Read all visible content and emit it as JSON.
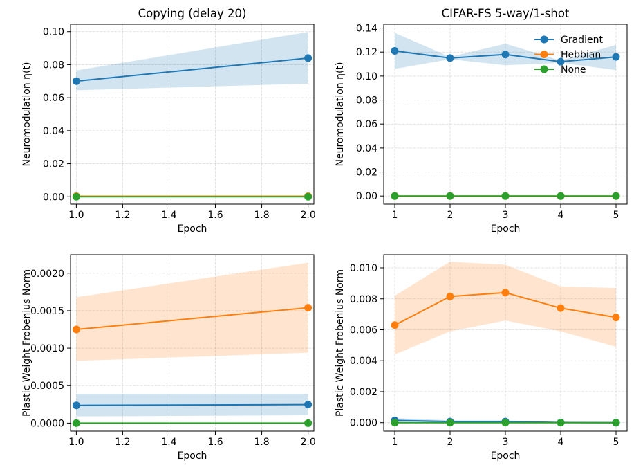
{
  "chart_data": [
    {
      "type": "line",
      "title": "Copying (delay 20)",
      "xlabel": "Epoch",
      "ylabel": "Neuromodulation η(t)",
      "xlim": [
        0.975,
        2.025
      ],
      "ylim": [
        -0.0045,
        0.1045
      ],
      "xticks": [
        1.0,
        1.2,
        1.4,
        1.6,
        1.8,
        2.0
      ],
      "xtick_labels": [
        "1.0",
        "1.2",
        "1.4",
        "1.6",
        "1.8",
        "2.0"
      ],
      "yticks": [
        0.0,
        0.02,
        0.04,
        0.06,
        0.08,
        0.1
      ],
      "ytick_labels": [
        "0.00",
        "0.02",
        "0.04",
        "0.06",
        "0.08",
        "0.10"
      ],
      "grid": true,
      "x": [
        1,
        2
      ],
      "series": [
        {
          "name": "Gradient",
          "color": "#1f77b4",
          "values": [
            0.07,
            0.084
          ],
          "lower": [
            0.0645,
            0.0685
          ],
          "upper": [
            0.0765,
            0.0998
          ]
        },
        {
          "name": "Hebbian",
          "color": "#ff7f0e",
          "values": [
            0.0003,
            0.0003
          ],
          "lower": [
            0.0001,
            0.0001
          ],
          "upper": [
            0.0005,
            0.0005
          ]
        },
        {
          "name": "None",
          "color": "#2ca02c",
          "values": [
            0.0,
            0.0
          ],
          "lower": [
            0.0,
            0.0
          ],
          "upper": [
            0.0,
            0.0
          ]
        }
      ]
    },
    {
      "type": "line",
      "title": "CIFAR-FS 5-way/1-shot",
      "xlabel": "Epoch",
      "ylabel": "Neuromodulation η(t)",
      "xlim": [
        0.8,
        5.2
      ],
      "ylim": [
        -0.0068,
        0.1432
      ],
      "xticks": [
        1,
        2,
        3,
        4,
        5
      ],
      "xtick_labels": [
        "1",
        "2",
        "3",
        "4",
        "5"
      ],
      "yticks": [
        0.0,
        0.02,
        0.04,
        0.06,
        0.08,
        0.1,
        0.12,
        0.14
      ],
      "ytick_labels": [
        "0.00",
        "0.02",
        "0.04",
        "0.06",
        "0.08",
        "0.10",
        "0.12",
        "0.14"
      ],
      "grid": true,
      "legend": "top-right",
      "x": [
        1,
        2,
        3,
        4,
        5
      ],
      "series": [
        {
          "name": "Gradient",
          "color": "#1f77b4",
          "values": [
            0.121,
            0.115,
            0.118,
            0.112,
            0.116
          ],
          "lower": [
            0.106,
            0.114,
            0.109,
            0.111,
            0.105
          ],
          "upper": [
            0.136,
            0.116,
            0.127,
            0.113,
            0.126
          ]
        },
        {
          "name": "Hebbian",
          "color": "#ff7f0e",
          "values": [
            0.0,
            0.0,
            0.0,
            0.0,
            0.0
          ],
          "lower": [
            0.0,
            0.0,
            0.0,
            0.0,
            0.0
          ],
          "upper": [
            0.0,
            0.0,
            0.0,
            0.0,
            0.0
          ]
        },
        {
          "name": "None",
          "color": "#2ca02c",
          "values": [
            0.0,
            0.0,
            0.0,
            0.0,
            0.0
          ],
          "lower": [
            0.0,
            0.0,
            0.0,
            0.0,
            0.0
          ],
          "upper": [
            0.0,
            0.0,
            0.0,
            0.0,
            0.0
          ]
        }
      ]
    },
    {
      "type": "line",
      "title": "",
      "xlabel": "Epoch",
      "ylabel": "Plastic Weight Frobenius Norm",
      "xlim": [
        0.975,
        2.025
      ],
      "ylim": [
        -0.000107,
        0.002247
      ],
      "xticks": [
        1.0,
        1.2,
        1.4,
        1.6,
        1.8,
        2.0
      ],
      "xtick_labels": [
        "1.0",
        "1.2",
        "1.4",
        "1.6",
        "1.8",
        "2.0"
      ],
      "yticks": [
        0.0,
        0.0005,
        0.001,
        0.0015,
        0.002
      ],
      "ytick_labels": [
        "0.0000",
        "0.0005",
        "0.0010",
        "0.0015",
        "0.0020"
      ],
      "grid": true,
      "x": [
        1,
        2
      ],
      "series": [
        {
          "name": "Gradient",
          "color": "#1f77b4",
          "values": [
            0.000237,
            0.000247
          ],
          "lower": [
            9e-05,
            0.000105
          ],
          "upper": [
            0.00039,
            0.00039
          ]
        },
        {
          "name": "Hebbian",
          "color": "#ff7f0e",
          "values": [
            0.00125,
            0.00154
          ],
          "lower": [
            0.00083,
            0.00094
          ],
          "upper": [
            0.00168,
            0.00214
          ]
        },
        {
          "name": "None",
          "color": "#2ca02c",
          "values": [
            0.0,
            0.0
          ],
          "lower": [
            0.0,
            0.0
          ],
          "upper": [
            0.0,
            0.0
          ]
        }
      ]
    },
    {
      "type": "line",
      "title": "",
      "xlabel": "Epoch",
      "ylabel": "Plastic Weight Frobenius Norm",
      "xlim": [
        0.8,
        5.2
      ],
      "ylim": [
        -0.00055,
        0.01085
      ],
      "xticks": [
        1,
        2,
        3,
        4,
        5
      ],
      "xtick_labels": [
        "1",
        "2",
        "3",
        "4",
        "5"
      ],
      "yticks": [
        0.0,
        0.002,
        0.004,
        0.006,
        0.008,
        0.01
      ],
      "ytick_labels": [
        "0.000",
        "0.002",
        "0.004",
        "0.006",
        "0.008",
        "0.010"
      ],
      "grid": true,
      "x": [
        1,
        2,
        3,
        4,
        5
      ],
      "series": [
        {
          "name": "Gradient",
          "color": "#1f77b4",
          "values": [
            0.00015,
            7e-05,
            7e-05,
            1e-05,
            0.0
          ],
          "lower": [
            5e-05,
            2e-05,
            2e-05,
            0.0,
            0.0
          ],
          "upper": [
            0.0003,
            0.00015,
            0.00015,
            4e-05,
            2e-05
          ]
        },
        {
          "name": "Hebbian",
          "color": "#ff7f0e",
          "values": [
            0.0063,
            0.00815,
            0.0084,
            0.0074,
            0.0068
          ],
          "lower": [
            0.0044,
            0.0059,
            0.0066,
            0.0059,
            0.0049
          ],
          "upper": [
            0.0082,
            0.0104,
            0.0102,
            0.0088,
            0.0087
          ]
        },
        {
          "name": "None",
          "color": "#2ca02c",
          "values": [
            0.0,
            0.0,
            0.0,
            0.0,
            0.0
          ],
          "lower": [
            0.0,
            0.0,
            0.0,
            0.0,
            0.0
          ],
          "upper": [
            0.0,
            0.0,
            0.0,
            0.0,
            0.0
          ]
        }
      ]
    }
  ]
}
